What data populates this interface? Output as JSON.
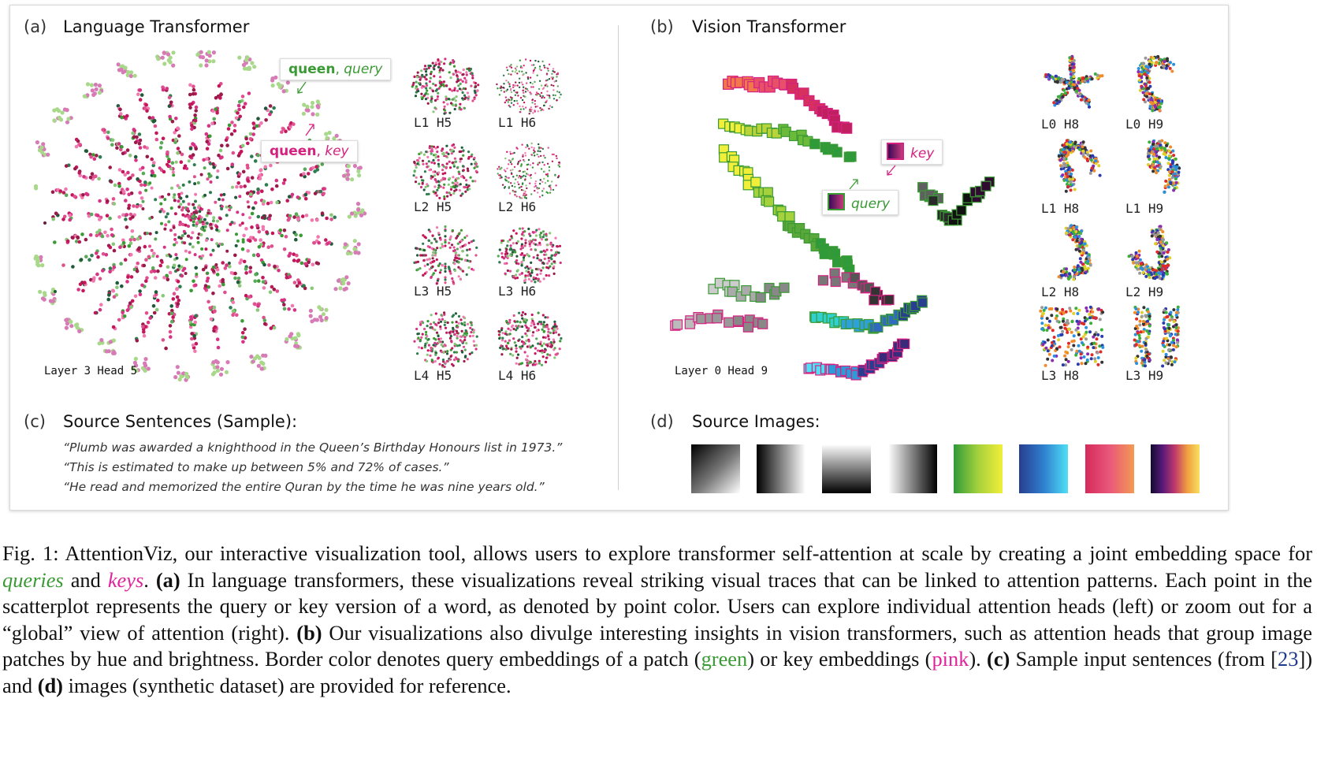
{
  "panel_a": {
    "tag": "(a)",
    "title": "Language Transformer",
    "main_label": "Layer 3 Head 5",
    "callout_query": {
      "word": "queen",
      "sep": ", ",
      "type": "query"
    },
    "callout_key": {
      "word": "queen",
      "sep": ", ",
      "type": "key"
    },
    "thumbs": [
      "L1 H5",
      "L1 H6",
      "L2 H5",
      "L2 H6",
      "L3 H5",
      "L3 H6",
      "L4 H5",
      "L4 H6"
    ]
  },
  "panel_b": {
    "tag": "(b)",
    "title": "Vision Transformer",
    "main_label": "Layer 0 Head 9",
    "callout_key": "key",
    "callout_query": "query",
    "thumbs": [
      "L0 H8",
      "L0 H9",
      "L1 H8",
      "L1 H9",
      "L2 H8",
      "L2 H9",
      "L3 H8",
      "L3 H9"
    ]
  },
  "panel_c": {
    "tag": "(c)",
    "title": "Source Sentences (Sample):",
    "sentences": [
      "“Plumb was awarded a knighthood in the Queen’s Birthday Honours list in 1973.”",
      "“This is estimated to make up between 5% and 72% of cases.”",
      "“He read and memorized the entire Quran by the time he was nine years old.”"
    ]
  },
  "panel_d": {
    "tag": "(d)",
    "title": "Source Images:"
  },
  "caption": {
    "prefix": "Fig. 1: AttentionViz, our interactive visualization tool, allows users to explore transformer self-attention at scale by creating a joint embedding space for ",
    "queries": "queries",
    "and": " and ",
    "keys": "keys",
    "after_keys": ". ",
    "a_tag": "(a)",
    "a_text": " In language transformers, these visualizations reveal striking visual traces that can be linked to attention patterns. Each point in the scatterplot represents the query or key version of a word, as denoted by point color. Users can explore individual attention heads (left) or zoom out for a “global” view of attention (right). ",
    "b_tag": "(b)",
    "b_text": " Our visualizations also divulge interesting insights in vision transformers, such as attention heads that group image patches by hue and brightness. Border color denotes query embeddings of a patch (",
    "green": "green",
    "mid": ") or key embeddings (",
    "pink": "pink",
    "after_pink": "). ",
    "c_tag": "(c)",
    "c_text": " Sample input sentences (from [",
    "ref": "23",
    "c_text2": "]) and ",
    "d_tag": "(d)",
    "d_text": " images (synthetic dataset) are provided for reference."
  },
  "colors": {
    "query_green": "#3a9a34",
    "key_pink": "#e0239a",
    "maroon": "#9a1a4a",
    "dark_green": "#1f5a3a"
  }
}
